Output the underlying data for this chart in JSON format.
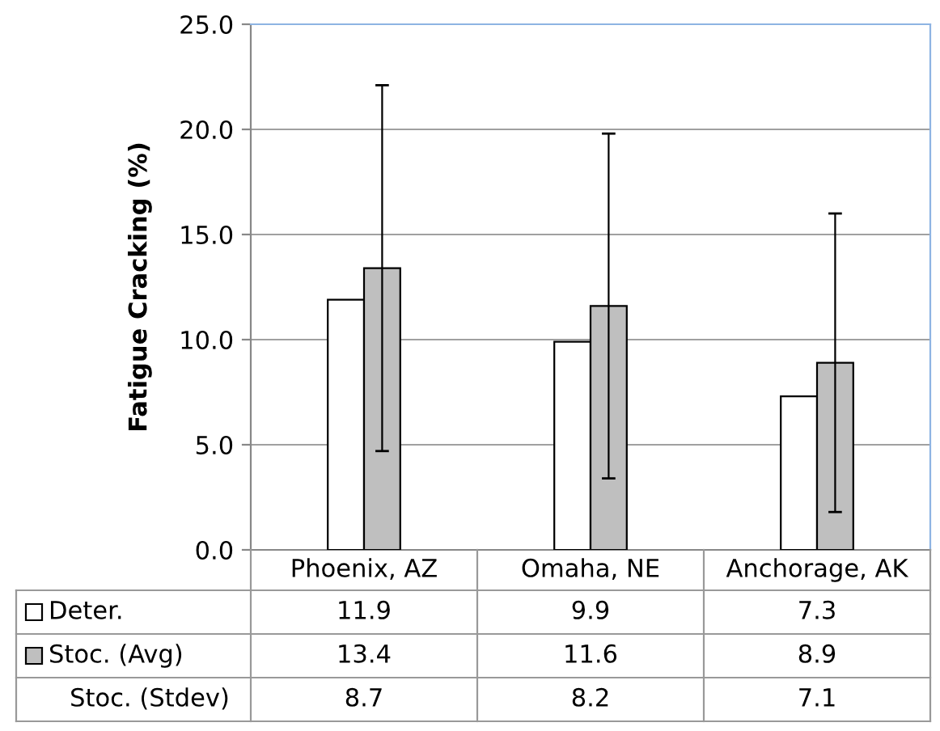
{
  "chart_data": {
    "type": "bar",
    "ylabel": "Fatigue Cracking (%)",
    "categories": [
      "Phoenix, AZ",
      "Omaha, NE",
      "Anchorage, AK"
    ],
    "series": [
      {
        "name": "Deter.",
        "color": "#ffffff",
        "values": [
          11.9,
          9.9,
          7.3
        ]
      },
      {
        "name": "Stoc. (Avg)",
        "color": "#bfbfbf",
        "values": [
          13.4,
          11.6,
          8.9
        ],
        "errors": [
          8.7,
          8.2,
          7.1
        ]
      }
    ],
    "annotations": [
      "Stoc. (Stdev)",
      "8.7",
      "8.2",
      "7.1"
    ],
    "ylim": [
      0,
      25
    ],
    "yticks": [
      {
        "value": 0,
        "label": "0.0"
      },
      {
        "value": 5,
        "label": "5.0"
      },
      {
        "value": 10,
        "label": "10.0"
      },
      {
        "value": 15,
        "label": "15.0"
      },
      {
        "value": 20,
        "label": "20.0"
      },
      {
        "value": 25,
        "label": "25.0"
      }
    ],
    "grid": "y",
    "legend": "bottom",
    "data_labels": true
  }
}
